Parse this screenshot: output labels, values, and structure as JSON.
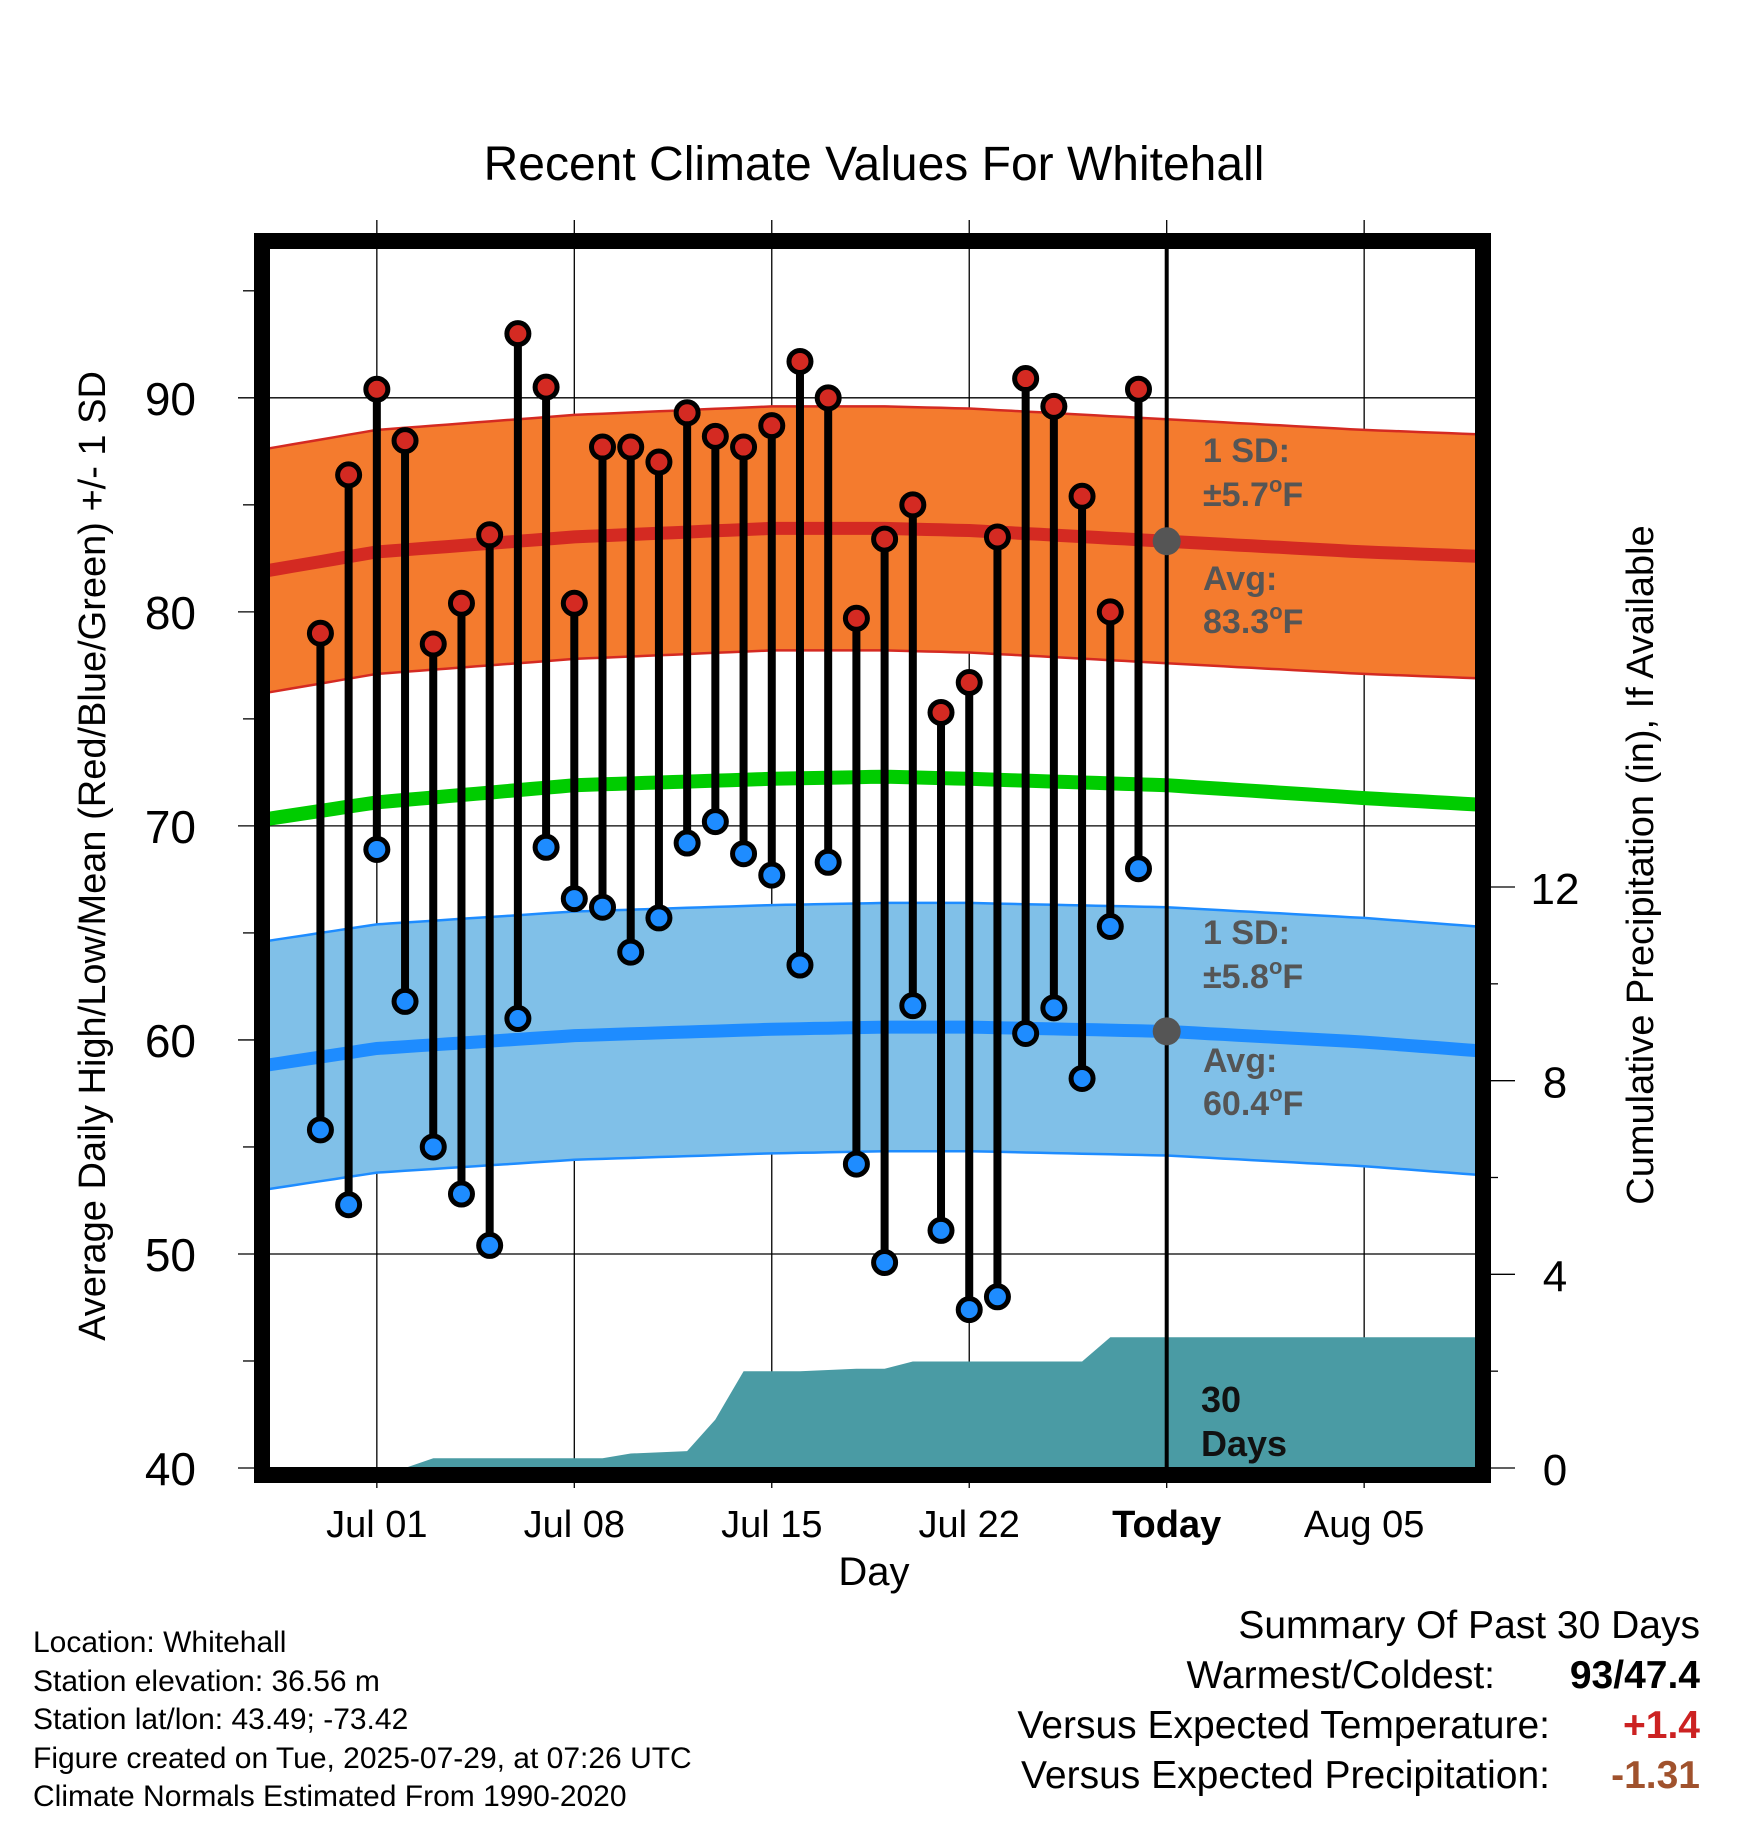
{
  "chart_data": {
    "type": "line",
    "title": "Recent Climate Values For Whitehall",
    "xlabel": "Day",
    "ylabel": "Average Daily High/Low/Mean (Red/Blue/Green) +/- 1 SD",
    "y2label": "Cumulative Precipitation (in), If Available",
    "ylim": [
      40,
      97
    ],
    "y2lim": [
      0,
      12
    ],
    "y_ticks": [
      40,
      50,
      60,
      70,
      80,
      90
    ],
    "y2_ticks": [
      0,
      4,
      8,
      12
    ],
    "xlim": [
      "2025-06-27",
      "2025-08-09"
    ],
    "x_ticks": [
      {
        "date": "2025-07-01",
        "label": "Jul 01"
      },
      {
        "date": "2025-07-08",
        "label": "Jul 08"
      },
      {
        "date": "2025-07-15",
        "label": "Jul 15"
      },
      {
        "date": "2025-07-22",
        "label": "Jul 22"
      },
      {
        "date": "2025-07-29",
        "label": "Today"
      },
      {
        "date": "2025-08-05",
        "label": "Aug 05"
      }
    ],
    "today": "2025-07-29",
    "grid": true,
    "colors": {
      "high": "#d42a22",
      "high_band": "#f47b2e",
      "low": "#1e8cff",
      "low_band": "#80c0e8",
      "mean": "#00cc00",
      "precip": "#4a9ba4",
      "annotation": "#555555"
    },
    "daily": [
      {
        "date": "2025-06-29",
        "high": 79,
        "low": 55.8
      },
      {
        "date": "2025-06-30",
        "high": 86.4,
        "low": 52.3
      },
      {
        "date": "2025-07-01",
        "high": 90.4,
        "low": 68.9
      },
      {
        "date": "2025-07-02",
        "high": 88,
        "low": 61.8
      },
      {
        "date": "2025-07-03",
        "high": 78.5,
        "low": 55
      },
      {
        "date": "2025-07-04",
        "high": 80.4,
        "low": 52.8
      },
      {
        "date": "2025-07-05",
        "high": 83.6,
        "low": 50.4
      },
      {
        "date": "2025-07-06",
        "high": 93,
        "low": 61
      },
      {
        "date": "2025-07-07",
        "high": 90.5,
        "low": 69
      },
      {
        "date": "2025-07-08",
        "high": 80.4,
        "low": 66.6
      },
      {
        "date": "2025-07-09",
        "high": 87.7,
        "low": 66.2
      },
      {
        "date": "2025-07-10",
        "high": 87.7,
        "low": 64.1
      },
      {
        "date": "2025-07-11",
        "high": 87,
        "low": 65.7
      },
      {
        "date": "2025-07-12",
        "high": 89.3,
        "low": 69.2
      },
      {
        "date": "2025-07-13",
        "high": 88.2,
        "low": 70.2
      },
      {
        "date": "2025-07-14",
        "high": 87.7,
        "low": 68.7
      },
      {
        "date": "2025-07-15",
        "high": 88.7,
        "low": 67.7
      },
      {
        "date": "2025-07-16",
        "high": 91.7,
        "low": 63.5
      },
      {
        "date": "2025-07-17",
        "high": 90,
        "low": 68.3
      },
      {
        "date": "2025-07-18",
        "high": 79.7,
        "low": 54.2
      },
      {
        "date": "2025-07-19",
        "high": 83.4,
        "low": 49.6
      },
      {
        "date": "2025-07-20",
        "high": 85,
        "low": 61.6
      },
      {
        "date": "2025-07-21",
        "high": 75.3,
        "low": 51.1
      },
      {
        "date": "2025-07-22",
        "high": 76.7,
        "low": 47.4
      },
      {
        "date": "2025-07-23",
        "high": 83.5,
        "low": 48
      },
      {
        "date": "2025-07-24",
        "high": 90.9,
        "low": 60.3
      },
      {
        "date": "2025-07-25",
        "high": 89.6,
        "low": 61.5
      },
      {
        "date": "2025-07-26",
        "high": 85.4,
        "low": 58.2
      },
      {
        "date": "2025-07-27",
        "high": 80,
        "low": 65.3
      },
      {
        "date": "2025-07-28",
        "high": 90.4,
        "low": 68
      }
    ],
    "normals": [
      {
        "date": "2025-06-27",
        "high": 81.9,
        "low": 58.8,
        "mean": 70.3
      },
      {
        "date": "2025-07-01",
        "high": 82.8,
        "low": 59.6,
        "mean": 71.1
      },
      {
        "date": "2025-07-08",
        "high": 83.5,
        "low": 60.2,
        "mean": 71.9
      },
      {
        "date": "2025-07-15",
        "high": 83.9,
        "low": 60.5,
        "mean": 72.2
      },
      {
        "date": "2025-07-19",
        "high": 83.9,
        "low": 60.6,
        "mean": 72.3
      },
      {
        "date": "2025-07-22",
        "high": 83.8,
        "low": 60.6,
        "mean": 72.2
      },
      {
        "date": "2025-07-29",
        "high": 83.3,
        "low": 60.4,
        "mean": 71.9
      },
      {
        "date": "2025-08-05",
        "high": 82.8,
        "low": 59.9,
        "mean": 71.3
      },
      {
        "date": "2025-08-09",
        "high": 82.6,
        "low": 59.5,
        "mean": 71
      }
    ],
    "high_sd": 5.7,
    "low_sd": 5.8,
    "precip_cumulative": [
      {
        "date": "2025-06-27",
        "value": 0
      },
      {
        "date": "2025-07-01",
        "value": 0
      },
      {
        "date": "2025-07-02",
        "value": 0
      },
      {
        "date": "2025-07-03",
        "value": 0.2
      },
      {
        "date": "2025-07-09",
        "value": 0.2
      },
      {
        "date": "2025-07-10",
        "value": 0.3
      },
      {
        "date": "2025-07-12",
        "value": 0.35
      },
      {
        "date": "2025-07-13",
        "value": 1
      },
      {
        "date": "2025-07-14",
        "value": 2
      },
      {
        "date": "2025-07-16",
        "value": 2
      },
      {
        "date": "2025-07-18",
        "value": 2.05
      },
      {
        "date": "2025-07-19",
        "value": 2.05
      },
      {
        "date": "2025-07-20",
        "value": 2.2
      },
      {
        "date": "2025-07-26",
        "value": 2.2
      },
      {
        "date": "2025-07-27",
        "value": 2.7
      },
      {
        "date": "2025-08-09",
        "value": 2.7
      }
    ],
    "annotations": {
      "high_sd_label": "1 SD:",
      "high_sd_value": "±5.7°F",
      "high_avg_label": "Avg:",
      "high_avg_value": "83.3°F",
      "low_sd_label": "1 SD:",
      "low_sd_value": "±5.8°F",
      "low_avg_label": "Avg:",
      "low_avg_value": "60.4°F",
      "days_number": "30",
      "days_word": "Days"
    }
  },
  "metadata": {
    "location": "Location: Whitehall",
    "elevation": "Station elevation: 36.56 m",
    "latlon": "Station lat/lon: 43.49; -73.42",
    "created": "Figure created on Tue, 2025-07-29, at 07:26 UTC",
    "normals": "Climate Normals Estimated From 1990-2020"
  },
  "summary": {
    "title": "Summary Of Past 30 Days",
    "warmest_label": "Warmest/Coldest:",
    "warmest_value": "93",
    "coldest_value": "47.4",
    "temp_label": "Versus Expected Temperature:",
    "temp_value": "+1.4",
    "temp_color": "#cc2222",
    "precip_label": "Versus Expected Precipitation:",
    "precip_value": "-1.31",
    "precip_color": "#a0522d"
  }
}
